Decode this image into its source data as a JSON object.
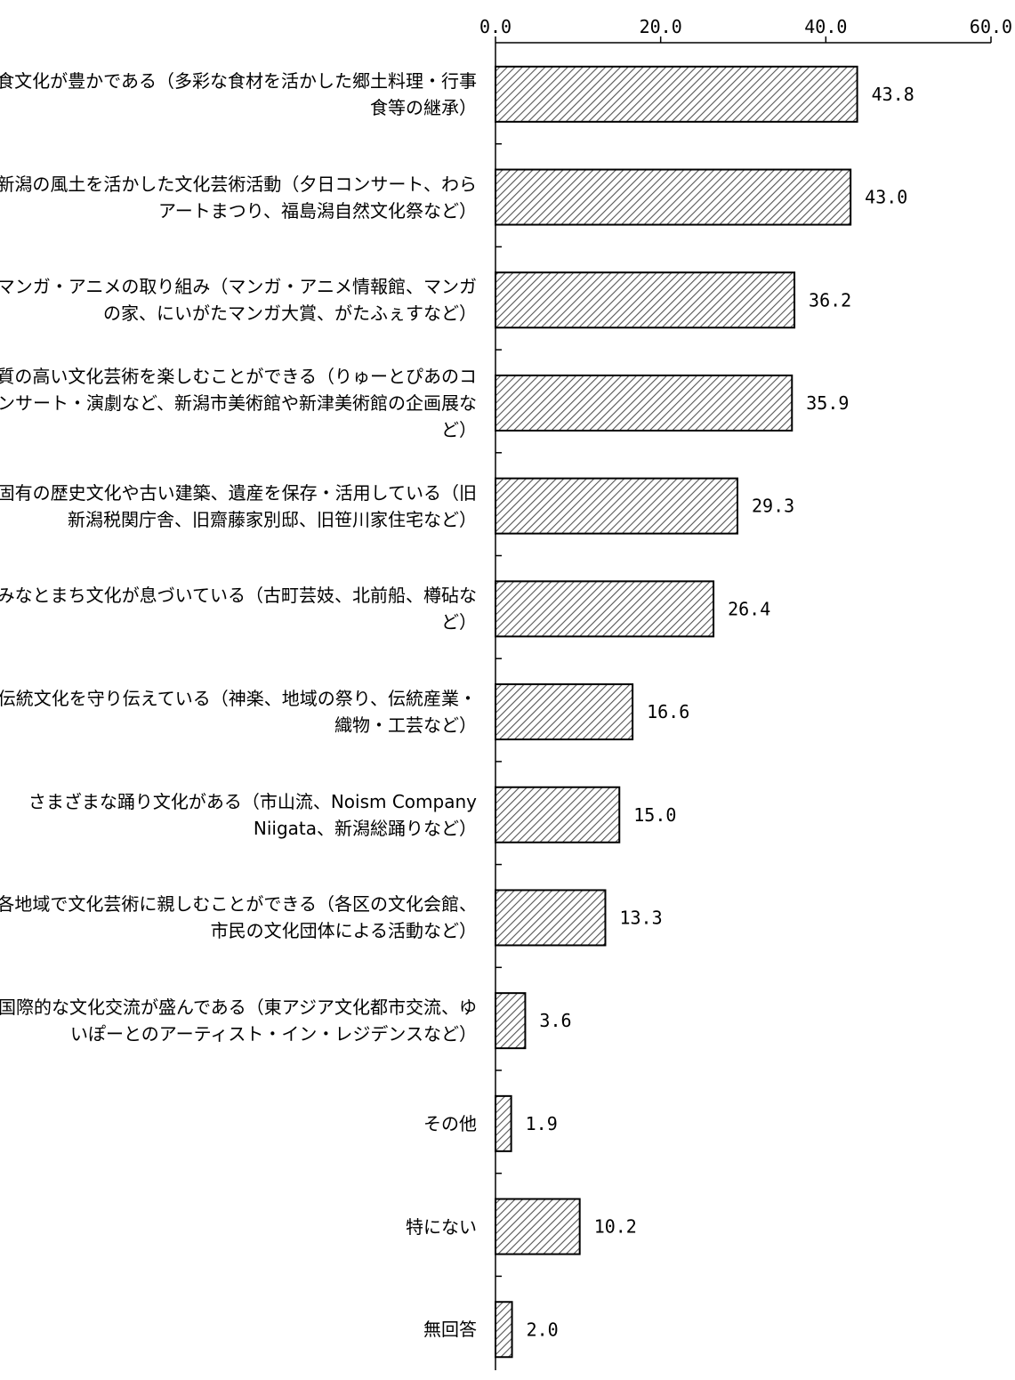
{
  "chart_data": {
    "type": "bar",
    "orientation": "horizontal",
    "xlim": [
      0,
      60
    ],
    "x_ticks": [
      "0.0",
      "20.0",
      "40.0",
      "60.0"
    ],
    "x_tick_values": [
      0,
      20,
      40,
      60
    ],
    "x_axis_position": "top",
    "grid": false,
    "bar_fill": "diagonal hatch",
    "colors": {
      "bar_stroke": "#000000",
      "hatch_line": "#555555",
      "bar_bg": "#ffffff"
    },
    "categories": [
      "食文化が豊かである（多彩な食材を活かした郷土料理・行事食等の継承）",
      "新潟の風土を活かした文化芸術活動（夕日コンサート、わらアートまつり、福島潟自然文化祭など）",
      "マンガ・アニメの取り組み（マンガ・アニメ情報館、マンガの家、にいがたマンガ大賞、がたふぇすなど）",
      "質の高い文化芸術を楽しむことができる（りゅーとぴあのコンサート・演劇など、新潟市美術館や新津美術館の企画展など）",
      "固有の歴史文化や古い建築、遺産を保存・活用している（旧新潟税関庁舎、旧齋藤家別邸、旧笹川家住宅など）",
      "みなとまち文化が息づいている（古町芸妓、北前船、樽砧など）",
      "伝統文化を守り伝えている（神楽、地域の祭り、伝統産業・織物・工芸など）",
      "さまざまな踊り文化がある（市山流、Noism Company Niigata、新潟総踊りなど）",
      "各地域で文化芸術に親しむことができる（各区の文化会館、市民の文化団体による活動など）",
      "国際的な文化交流が盛んである（東アジア文化都市交流、ゆいぽーとのアーティスト・イン・レジデンスなど）",
      "その他",
      "特にない",
      "無回答"
    ],
    "values": [
      43.8,
      43.0,
      36.2,
      35.9,
      29.3,
      26.4,
      16.6,
      15.0,
      13.3,
      3.6,
      1.9,
      10.2,
      2.0
    ],
    "value_labels": [
      "43.8",
      "43.0",
      "36.2",
      "35.9",
      "29.3",
      "26.4",
      "16.6",
      "15.0",
      "13.3",
      "3.6",
      "1.9",
      "10.2",
      "2.0"
    ]
  }
}
